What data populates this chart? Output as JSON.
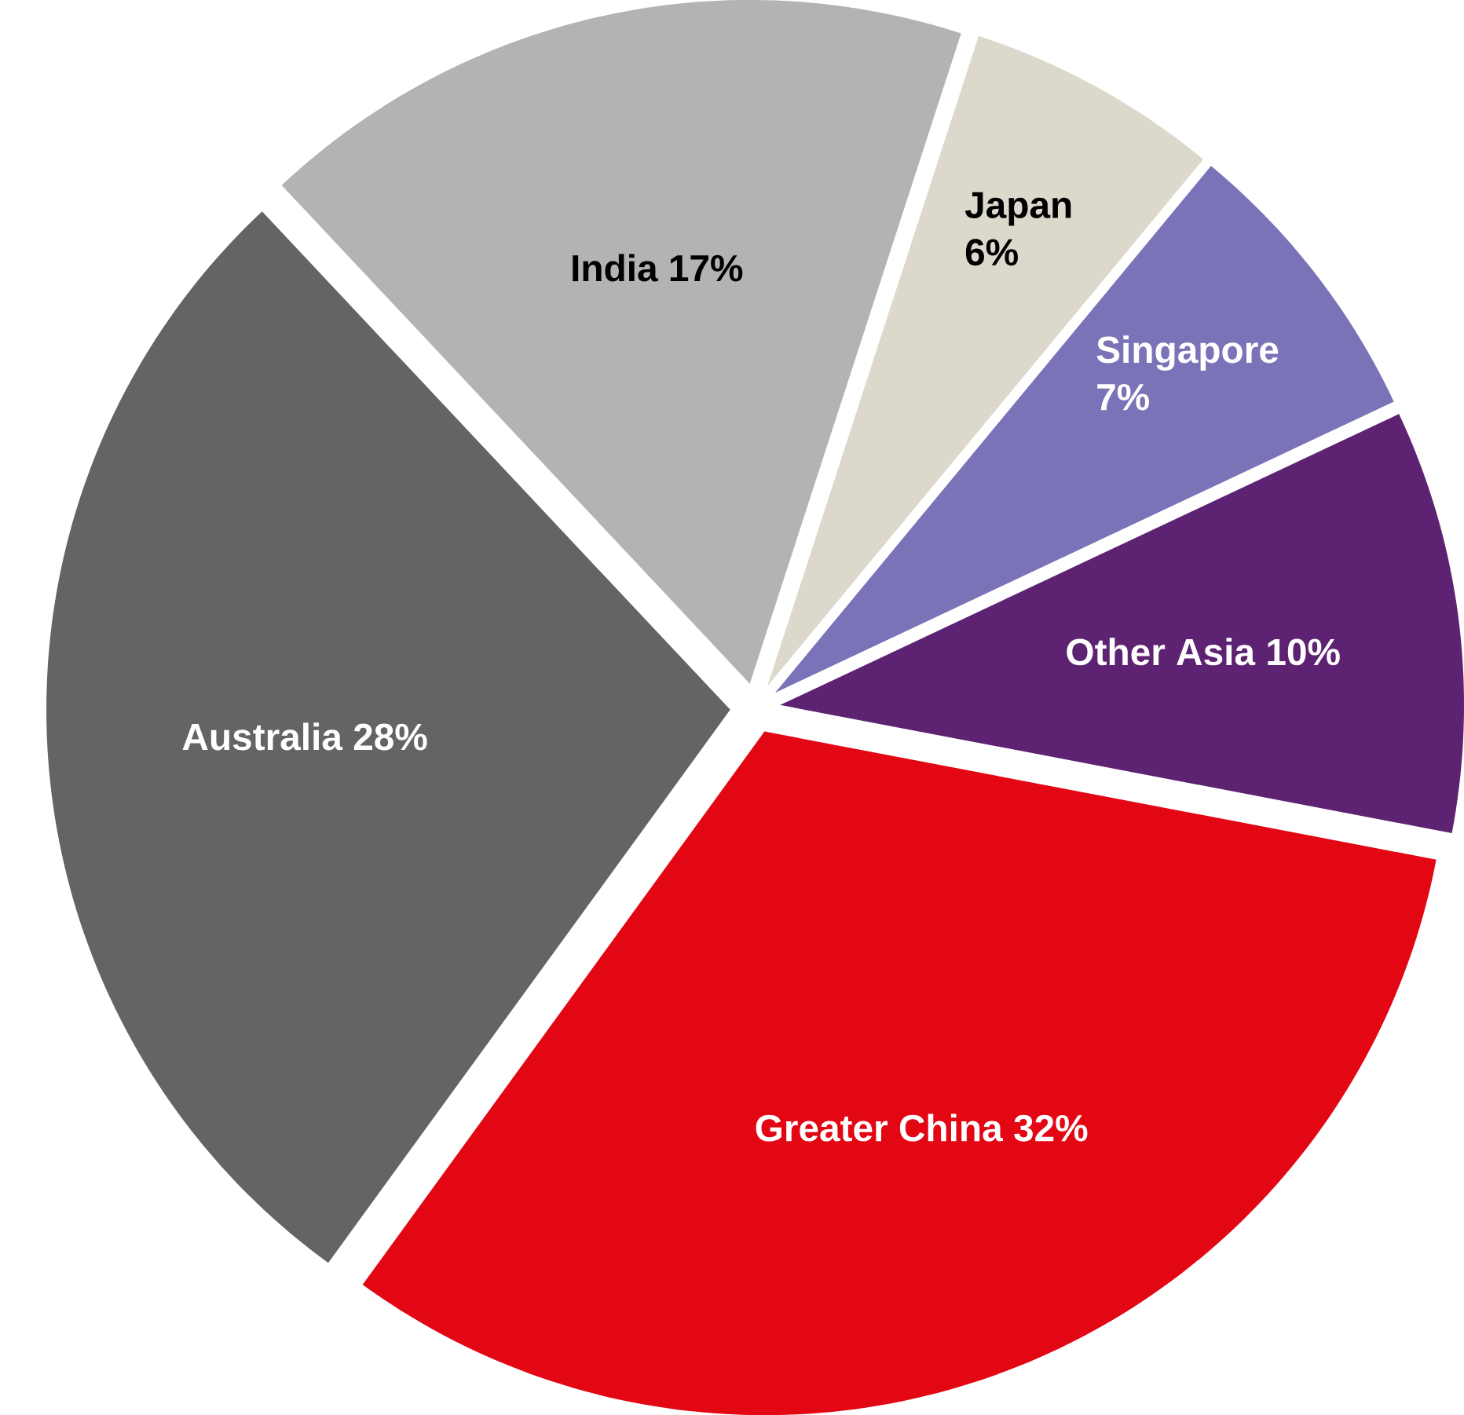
{
  "chart_data": {
    "type": "pie",
    "categories": [
      "Japan",
      "Singapore",
      "Other Asia",
      "Greater China",
      "Australia",
      "India"
    ],
    "values": [
      6,
      7,
      10,
      32,
      28,
      17
    ],
    "value_labels": [
      "6%",
      "7%",
      "10%",
      "32%",
      "28%",
      "17%"
    ],
    "colors": [
      "#ddd8cc",
      "#7b73b8",
      "#5e2272",
      "#e30613",
      "#636466",
      "#b2b3b5"
    ]
  }
}
